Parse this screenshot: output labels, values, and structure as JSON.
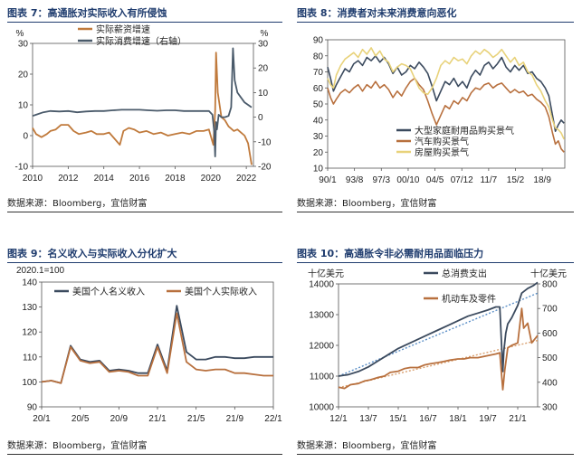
{
  "source_label": "数据来源：Bloomberg，宜信财富",
  "chart_data": [
    {
      "id": "fig7",
      "type": "line",
      "title": "图表 7：高通胀对实际收入有所侵蚀",
      "left_unit": "%",
      "right_unit": "%",
      "xlim": [
        2010,
        2022.4
      ],
      "x_ticks": [
        "2010",
        "2012",
        "2014",
        "2016",
        "2018",
        "2020",
        "2022"
      ],
      "ylim": [
        -10,
        30
      ],
      "y_ticks": [
        "30",
        "20",
        "10",
        "0",
        "-10"
      ],
      "y2lim": [
        -20,
        30
      ],
      "y2_ticks": [
        "30",
        "20",
        "10",
        "0",
        "-10",
        "-20"
      ],
      "series": [
        {
          "name": "实际薪资增速",
          "color": "#c07a3c",
          "axis": "left",
          "x": [
            2010.0,
            2010.2,
            2010.5,
            2010.8,
            2011.0,
            2011.3,
            2011.6,
            2012.0,
            2012.3,
            2012.6,
            2013.0,
            2013.3,
            2013.6,
            2014.0,
            2014.3,
            2014.6,
            2014.9,
            2015.1,
            2015.4,
            2015.7,
            2016.0,
            2016.4,
            2016.8,
            2017.2,
            2017.6,
            2018.0,
            2018.4,
            2018.8,
            2019.2,
            2019.6,
            2019.9,
            2020.15,
            2020.25,
            2020.3,
            2020.4,
            2020.5,
            2020.6,
            2020.8,
            2021.0,
            2021.3,
            2021.5,
            2021.7,
            2021.9,
            2022.1,
            2022.3
          ],
          "values": [
            2.5,
            0.5,
            -0.5,
            0.5,
            1.5,
            2.0,
            3.5,
            3.5,
            1.5,
            0.5,
            1.0,
            1.5,
            0.5,
            0.5,
            1.0,
            -1.0,
            -3.0,
            1.5,
            2.5,
            2.0,
            1.0,
            1.5,
            0.5,
            1.0,
            0.0,
            0.5,
            1.0,
            0.5,
            1.5,
            1.5,
            2.0,
            -3.0,
            8.0,
            27.0,
            14.0,
            10.0,
            6.0,
            5.0,
            3.0,
            1.5,
            2.0,
            1.0,
            0.0,
            -2.5,
            -9.5
          ]
        },
        {
          "name": "实际消费增速（右轴）",
          "color": "#4a5a6a",
          "axis": "right",
          "x": [
            2010.0,
            2010.2,
            2010.6,
            2011.0,
            2011.5,
            2012.0,
            2012.5,
            2013.0,
            2013.5,
            2014.0,
            2014.5,
            2015.0,
            2015.5,
            2016.0,
            2016.5,
            2017.0,
            2017.5,
            2018.0,
            2018.5,
            2019.0,
            2019.5,
            2019.9,
            2020.1,
            2020.2,
            2020.25,
            2020.3,
            2020.35,
            2020.45,
            2020.6,
            2020.8,
            2021.0,
            2021.15,
            2021.25,
            2021.35,
            2021.5,
            2021.7,
            2021.9,
            2022.1,
            2022.3
          ],
          "values": [
            0.5,
            1.0,
            2.0,
            2.5,
            2.3,
            2.5,
            2.0,
            2.3,
            2.5,
            2.5,
            2.8,
            3.0,
            3.0,
            3.0,
            2.8,
            2.6,
            2.8,
            2.8,
            2.5,
            2.5,
            2.5,
            2.5,
            1.0,
            -6.0,
            -16.0,
            -2.0,
            -5.0,
            1.0,
            0.0,
            0.0,
            0.5,
            4.0,
            28.0,
            15.0,
            10.0,
            8.0,
            6.0,
            5.0,
            4.0
          ]
        }
      ]
    },
    {
      "id": "fig8",
      "type": "line",
      "title": "图表 8：消费者对未来消费意向恶化",
      "xlim": [
        0,
        32.7
      ],
      "x_ticks": [
        "90/1",
        "93/8",
        "97/3",
        "00/10",
        "04/5",
        "07/12",
        "11/7",
        "15/2",
        "18/9"
      ],
      "ylim": [
        10,
        90
      ],
      "y_ticks": [
        "90",
        "80",
        "70",
        "60",
        "50",
        "40",
        "30",
        "20",
        "10"
      ],
      "series": [
        {
          "name": "大型家庭耐用品购买景气",
          "color": "#3b4a5e",
          "x": [
            0.0,
            0.4,
            0.8,
            1.2,
            1.8,
            2.4,
            3.0,
            3.6,
            4.2,
            4.8,
            5.4,
            6.0,
            6.6,
            7.2,
            7.8,
            8.4,
            9.0,
            9.6,
            10.2,
            10.8,
            11.4,
            12.0,
            12.6,
            13.2,
            13.8,
            14.4,
            15.0,
            15.6,
            16.2,
            16.8,
            17.4,
            18.0,
            18.6,
            19.2,
            19.8,
            20.4,
            21.0,
            21.6,
            22.2,
            22.8,
            23.4,
            24.0,
            24.6,
            25.2,
            25.8,
            26.4,
            27.0,
            27.6,
            28.2,
            28.8,
            29.4,
            30.0,
            30.5,
            31.0,
            31.4,
            31.8,
            32.2,
            32.6
          ],
          "values": [
            73,
            66,
            58,
            62,
            67,
            72,
            70,
            75,
            77,
            74,
            79,
            77,
            80,
            76,
            79,
            75,
            69,
            73,
            68,
            70,
            74,
            72,
            76,
            73,
            69,
            61,
            52,
            58,
            64,
            62,
            66,
            61,
            64,
            60,
            67,
            71,
            68,
            74,
            76,
            72,
            75,
            79,
            73,
            70,
            74,
            71,
            74,
            69,
            70,
            66,
            64,
            60,
            55,
            43,
            33,
            37,
            40,
            38
          ]
        },
        {
          "name": "汽车购买景气",
          "color": "#b8703e",
          "x": [
            0.0,
            0.4,
            0.8,
            1.2,
            1.8,
            2.4,
            3.0,
            3.6,
            4.2,
            4.8,
            5.4,
            6.0,
            6.6,
            7.2,
            7.8,
            8.4,
            9.0,
            9.6,
            10.2,
            10.8,
            11.4,
            12.0,
            12.6,
            13.2,
            13.8,
            14.4,
            15.0,
            15.6,
            16.2,
            16.8,
            17.4,
            18.0,
            18.6,
            19.2,
            19.8,
            20.4,
            21.0,
            21.6,
            22.2,
            22.8,
            23.4,
            24.0,
            24.6,
            25.2,
            25.8,
            26.4,
            27.0,
            27.6,
            28.2,
            28.8,
            29.4,
            30.0,
            30.5,
            31.0,
            31.4,
            31.8,
            32.2,
            32.6
          ],
          "values": [
            60,
            54,
            50,
            53,
            57,
            59,
            57,
            60,
            62,
            58,
            62,
            60,
            64,
            60,
            62,
            59,
            54,
            58,
            55,
            60,
            64,
            66,
            62,
            59,
            52,
            44,
            37,
            43,
            49,
            47,
            52,
            50,
            54,
            52,
            57,
            60,
            59,
            62,
            63,
            60,
            62,
            63,
            60,
            57,
            59,
            57,
            58,
            55,
            56,
            53,
            51,
            48,
            42,
            32,
            25,
            27,
            22,
            20
          ]
        },
        {
          "name": "房屋购买景气",
          "color": "#e8d27a",
          "x": [
            0.0,
            0.4,
            0.8,
            1.2,
            1.8,
            2.4,
            3.0,
            3.6,
            4.2,
            4.8,
            5.4,
            6.0,
            6.6,
            7.2,
            7.8,
            8.4,
            9.0,
            9.6,
            10.2,
            10.8,
            11.4,
            12.0,
            12.6,
            13.2,
            13.8,
            14.4,
            15.0,
            15.6,
            16.2,
            16.8,
            17.4,
            18.0,
            18.6,
            19.2,
            19.8,
            20.4,
            21.0,
            21.6,
            22.2,
            22.8,
            23.4,
            24.0,
            24.6,
            25.2,
            25.8,
            26.4,
            27.0,
            27.6,
            28.2,
            28.8,
            29.4,
            30.0,
            30.5,
            31.0,
            31.4,
            31.8,
            32.2,
            32.6
          ],
          "values": [
            66,
            62,
            60,
            68,
            74,
            78,
            80,
            82,
            79,
            84,
            81,
            85,
            80,
            83,
            78,
            76,
            70,
            73,
            75,
            74,
            72,
            66,
            60,
            57,
            56,
            60,
            66,
            74,
            77,
            75,
            79,
            77,
            78,
            75,
            80,
            83,
            81,
            84,
            82,
            79,
            81,
            84,
            80,
            76,
            79,
            74,
            76,
            70,
            68,
            62,
            58,
            52,
            48,
            40,
            35,
            34,
            32,
            28
          ]
        }
      ]
    },
    {
      "id": "fig9",
      "type": "line",
      "title": "图表 9：名义收入与实际收入分化扩大",
      "unit_label": "2020.1=100",
      "xlim": [
        0,
        24
      ],
      "x_ticks": [
        "20/1",
        "20/5",
        "20/9",
        "21/1",
        "21/5",
        "21/9",
        "22/1"
      ],
      "ylim": [
        90,
        140
      ],
      "y_ticks": [
        "140",
        "130",
        "120",
        "110",
        "100",
        "90"
      ],
      "series": [
        {
          "name": "美国个人名义收入",
          "color": "#3b4a5e",
          "x": [
            0,
            1,
            2,
            3,
            4,
            5,
            6,
            7,
            8,
            9,
            10,
            11,
            12,
            13,
            14,
            15,
            16,
            17,
            18,
            19,
            20,
            21,
            22,
            23,
            24
          ],
          "values": [
            100,
            100.5,
            99.5,
            114.5,
            109,
            108,
            108.5,
            104.5,
            105,
            104.5,
            103.5,
            103.5,
            115,
            104.5,
            130.5,
            112,
            109,
            109,
            110,
            110,
            109.5,
            109.5,
            110,
            110,
            110
          ]
        },
        {
          "name": "美国个人实际收入",
          "color": "#b8703e",
          "x": [
            0,
            1,
            2,
            3,
            4,
            5,
            6,
            7,
            8,
            9,
            10,
            11,
            12,
            13,
            14,
            15,
            16,
            17,
            18,
            19,
            20,
            21,
            22,
            23,
            24
          ],
          "values": [
            100,
            100.5,
            99.5,
            114,
            108.5,
            107.5,
            108,
            104,
            104.5,
            104,
            102.5,
            102.5,
            114,
            103.5,
            127.5,
            108,
            105,
            104.5,
            105,
            105,
            103.5,
            103.5,
            103,
            102.5,
            102.5
          ]
        }
      ]
    },
    {
      "id": "fig10",
      "type": "line",
      "title": "图表 10：高通胀令非必需耐用品面临压力",
      "left_unit": "十亿美元",
      "right_unit": "十亿美元",
      "xlim": [
        2012.0,
        2022.0
      ],
      "x_ticks": [
        "12/1",
        "13/7",
        "15/1",
        "16/7",
        "18/1",
        "19/7",
        "21/1"
      ],
      "x_tick_values": [
        2012.0,
        2013.5,
        2015.0,
        2016.5,
        2018.0,
        2019.5,
        2021.0
      ],
      "ylim": [
        10000,
        14000
      ],
      "y_ticks": [
        "14000",
        "13000",
        "12000",
        "11000",
        "10000"
      ],
      "y2lim": [
        300,
        800
      ],
      "y2_ticks": [
        "800",
        "700",
        "600",
        "500",
        "400",
        "300"
      ],
      "series": [
        {
          "name": "总消费支出",
          "color": "#3b4a5e",
          "axis": "left",
          "x": [
            2012.0,
            2012.5,
            2013.0,
            2013.5,
            2014.0,
            2014.5,
            2015.0,
            2015.5,
            2016.0,
            2016.5,
            2017.0,
            2017.5,
            2018.0,
            2018.5,
            2019.0,
            2019.5,
            2019.9,
            2020.1,
            2020.25,
            2020.3,
            2020.4,
            2020.5,
            2020.7,
            2021.0,
            2021.2,
            2021.5,
            2021.8,
            2022.0
          ],
          "values": [
            11000,
            11050,
            11150,
            11300,
            11500,
            11700,
            11900,
            12050,
            12200,
            12350,
            12500,
            12650,
            12800,
            12950,
            13050,
            13150,
            13250,
            13250,
            11150,
            11800,
            12400,
            12700,
            12900,
            13300,
            13700,
            13850,
            13950,
            14050
          ]
        },
        {
          "name": "机动车及零件",
          "color": "#b8703e",
          "axis": "right",
          "x": [
            2012.0,
            2012.3,
            2012.6,
            2013.0,
            2013.3,
            2013.6,
            2014.0,
            2014.3,
            2014.6,
            2015.0,
            2015.3,
            2015.6,
            2016.0,
            2016.3,
            2016.6,
            2017.0,
            2017.3,
            2017.6,
            2018.0,
            2018.3,
            2018.6,
            2019.0,
            2019.3,
            2019.6,
            2019.9,
            2020.1,
            2020.25,
            2020.35,
            2020.5,
            2020.7,
            2021.0,
            2021.2,
            2021.3,
            2021.5,
            2021.7,
            2021.9,
            2022.0
          ],
          "values": [
            380,
            375,
            390,
            395,
            405,
            410,
            420,
            425,
            440,
            445,
            455,
            460,
            460,
            470,
            475,
            480,
            485,
            490,
            495,
            495,
            500,
            500,
            505,
            510,
            515,
            520,
            370,
            450,
            540,
            550,
            560,
            700,
            620,
            640,
            560,
            580,
            590
          ]
        }
      ],
      "trendlines": [
        {
          "axis": "left",
          "color": "#5b8fc7",
          "x": [
            2012.0,
            2022.0
          ],
          "values": [
            11000,
            13700
          ]
        },
        {
          "axis": "right",
          "color": "#d9a070",
          "x": [
            2012.0,
            2022.0
          ],
          "values": [
            378,
            570
          ]
        }
      ]
    }
  ]
}
